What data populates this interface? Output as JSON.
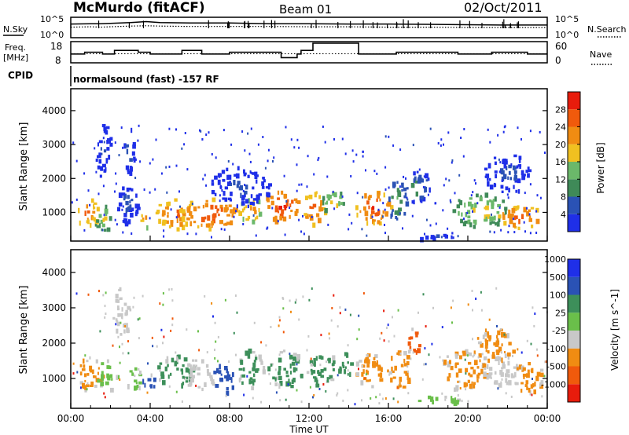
{
  "header": {
    "station": "McMurdo (fitACF)",
    "beam": "Beam 01",
    "date": "02/Oct/2011"
  },
  "noise_panel": {
    "left_label": "N.Sky",
    "right_label": "N.Search",
    "left_ticks": [
      "10^5",
      "10^0"
    ],
    "right_ticks": [
      "10^5",
      "10^0"
    ]
  },
  "freq_panel": {
    "left_label_line1": "Freq.",
    "left_label_line2": "[MHz]",
    "right_label": "Nave",
    "left_ticks": [
      "18",
      "8"
    ],
    "right_ticks": [
      "60",
      "0"
    ]
  },
  "cpid": {
    "label": "CPID",
    "text": "normalsound (fast) -157 RF"
  },
  "time_axis": {
    "title": "Time UT",
    "ticks": [
      "00:00",
      "04:00",
      "08:00",
      "12:00",
      "16:00",
      "20:00",
      "00:00"
    ]
  },
  "colors": {
    "power": [
      "#1f2fe8",
      "#2a52b5",
      "#3f8a58",
      "#6bb86a",
      "#f0c020",
      "#f08c12",
      "#f05a0c",
      "#e81c0c"
    ],
    "velocity": [
      "#e81c0c",
      "#f05a0c",
      "#f08c12",
      "#c8c8c8",
      "#6abf4a",
      "#3d8f5a",
      "#2a52b5",
      "#1f2fe8"
    ]
  },
  "chart_data": [
    {
      "type": "line",
      "panel": "noise",
      "x": [
        0,
        1,
        1.5,
        2,
        3,
        3.8,
        4.5,
        6,
        8,
        10,
        12,
        14,
        16,
        18,
        20,
        22,
        24
      ],
      "series": [
        {
          "name": "N.Sky",
          "values": [
            3.5,
            3.6,
            3.6,
            3.7,
            3.9,
            4.2,
            3.9,
            3.8,
            3.8,
            3.6,
            3.6,
            3.5,
            3.5,
            3.4,
            3.3,
            3.2,
            3.2
          ]
        },
        {
          "name": "N.Search",
          "values": [
            2.6,
            2.7,
            2.6,
            2.7,
            2.9,
            3.0,
            2.9,
            2.8,
            2.8,
            2.8,
            2.7,
            2.7,
            2.6,
            2.6,
            2.5,
            2.5,
            2.5
          ]
        }
      ],
      "ylim": [
        0,
        5
      ]
    },
    {
      "type": "line",
      "panel": "frequency",
      "x": [
        0,
        0.6,
        0.7,
        1.5,
        1.6,
        2.0,
        2.2,
        3.2,
        3.4,
        4.0,
        4.3,
        5.0,
        5.6,
        6.0,
        6.6,
        7.4,
        8.0,
        9.0,
        10.2,
        10.6,
        11.0,
        11.4,
        11.6,
        12.0,
        12.2,
        14.5,
        16.0,
        16.4,
        19.5,
        21.0,
        21.2,
        23.0,
        24.0
      ],
      "series": [
        {
          "name": "Freq",
          "values": [
            12,
            12,
            13,
            13,
            12,
            12,
            14,
            14,
            13,
            12,
            12,
            12,
            14,
            14,
            12,
            12,
            13,
            13,
            13,
            10,
            10,
            12,
            14,
            14,
            18,
            12,
            12,
            13,
            12,
            12,
            13,
            12,
            12
          ]
        },
        {
          "name": "Nave",
          "values": [
            25,
            25,
            25,
            25,
            25,
            25,
            25,
            25,
            25,
            25,
            25,
            25,
            25,
            25,
            25,
            25,
            25,
            25,
            25,
            25,
            25,
            25,
            25,
            25,
            25,
            25,
            25,
            25,
            25,
            25,
            25,
            25,
            25
          ]
        }
      ],
      "ylim": [
        8,
        18
      ]
    },
    {
      "type": "heatmap",
      "panel": "power",
      "xlabel": "Time UT",
      "ylabel": "Slant Range [km]",
      "xlim": [
        0,
        24
      ],
      "ylim": [
        200,
        4600
      ],
      "y_ticks": [
        "1000",
        "2000",
        "3000",
        "4000"
      ],
      "colorbar": {
        "label": "Power [dB]",
        "ticks": [
          "4",
          "8",
          "12",
          "16",
          "20",
          "24",
          "28"
        ],
        "range": [
          0,
          32
        ]
      },
      "blobs": [
        {
          "t": 0.8,
          "r": 1050,
          "dt": 0.6,
          "dr": 400,
          "v": 26
        },
        {
          "t": 1.6,
          "r": 900,
          "dt": 0.5,
          "dr": 400,
          "v": 18
        },
        {
          "t": 3.7,
          "r": 850,
          "dt": 0.3,
          "dr": 250,
          "v": 25
        },
        {
          "t": 2.8,
          "r": 1400,
          "dt": 0.6,
          "dr": 700,
          "v": 8
        },
        {
          "t": 5.2,
          "r": 1000,
          "dt": 1.0,
          "dr": 450,
          "v": 27
        },
        {
          "t": 7.0,
          "r": 1000,
          "dt": 1.6,
          "dr": 450,
          "v": 29
        },
        {
          "t": 9.0,
          "r": 1100,
          "dt": 0.6,
          "dr": 400,
          "v": 24
        },
        {
          "t": 10.6,
          "r": 1250,
          "dt": 0.9,
          "dr": 500,
          "v": 30
        },
        {
          "t": 12.2,
          "r": 1150,
          "dt": 0.6,
          "dr": 500,
          "v": 28
        },
        {
          "t": 13.2,
          "r": 1350,
          "dt": 0.6,
          "dr": 350,
          "v": 20
        },
        {
          "t": 15.2,
          "r": 1200,
          "dt": 0.9,
          "dr": 500,
          "v": 29
        },
        {
          "t": 16.4,
          "r": 1400,
          "dt": 0.5,
          "dr": 650,
          "v": 14
        },
        {
          "t": 17.4,
          "r": 1800,
          "dt": 0.7,
          "dr": 500,
          "v": 12
        },
        {
          "t": 20.6,
          "r": 1100,
          "dt": 1.4,
          "dr": 500,
          "v": 20
        },
        {
          "t": 22.6,
          "r": 900,
          "dt": 1.2,
          "dr": 350,
          "v": 28
        },
        {
          "t": 22.0,
          "r": 2200,
          "dt": 1.2,
          "dr": 600,
          "v": 8
        },
        {
          "t": 1.6,
          "r": 2800,
          "dt": 0.4,
          "dr": 900,
          "v": 8
        },
        {
          "t": 2.9,
          "r": 2900,
          "dt": 0.3,
          "dr": 700,
          "v": 10
        },
        {
          "t": 8.5,
          "r": 1800,
          "dt": 1.5,
          "dr": 600,
          "v": 8
        },
        {
          "t": 18.5,
          "r": 350,
          "dt": 1.2,
          "dr": 120,
          "v": 6
        }
      ]
    },
    {
      "type": "heatmap",
      "panel": "velocity",
      "xlabel": "Time UT",
      "ylabel": "Slant Range [km]",
      "xlim": [
        0,
        24
      ],
      "ylim": [
        200,
        4600
      ],
      "y_ticks": [
        "1000",
        "2000",
        "3000",
        "4000"
      ],
      "colorbar": {
        "label": "Velocity [m s^-1]",
        "ticks": [
          "-1000",
          "-500",
          "-100",
          "-25",
          "25",
          "100",
          "500",
          "1000"
        ]
      },
      "blobs": [
        {
          "t": 0.9,
          "r": 1150,
          "dt": 0.7,
          "dr": 500,
          "c": 2
        },
        {
          "t": 1.8,
          "r": 1100,
          "dt": 0.5,
          "dr": 450,
          "c": 4
        },
        {
          "t": 3.2,
          "r": 1000,
          "dt": 0.4,
          "dr": 400,
          "c": 4
        },
        {
          "t": 3.9,
          "r": 950,
          "dt": 0.3,
          "dr": 300,
          "c": 6
        },
        {
          "t": 5.2,
          "r": 1200,
          "dt": 1.0,
          "dr": 500,
          "c": 5
        },
        {
          "t": 6.4,
          "r": 1200,
          "dt": 0.6,
          "dr": 500,
          "c": 3
        },
        {
          "t": 7.6,
          "r": 1050,
          "dt": 0.6,
          "dr": 450,
          "c": 6
        },
        {
          "t": 9.0,
          "r": 1300,
          "dt": 0.7,
          "dr": 550,
          "c": 5
        },
        {
          "t": 10.8,
          "r": 1300,
          "dt": 0.9,
          "dr": 550,
          "c": 5
        },
        {
          "t": 12.6,
          "r": 1300,
          "dt": 0.8,
          "dr": 500,
          "c": 5
        },
        {
          "t": 13.8,
          "r": 1350,
          "dt": 0.4,
          "dr": 400,
          "c": 5
        },
        {
          "t": 15.0,
          "r": 1250,
          "dt": 0.8,
          "dr": 500,
          "c": 2
        },
        {
          "t": 16.5,
          "r": 1300,
          "dt": 0.6,
          "dr": 550,
          "c": 2
        },
        {
          "t": 17.2,
          "r": 2100,
          "dt": 0.4,
          "dr": 350,
          "c": 1
        },
        {
          "t": 19.8,
          "r": 1250,
          "dt": 1.2,
          "dr": 600,
          "c": 2
        },
        {
          "t": 21.6,
          "r": 1300,
          "dt": 0.9,
          "dr": 500,
          "c": 3
        },
        {
          "t": 23.0,
          "r": 1050,
          "dt": 0.9,
          "dr": 450,
          "c": 2
        },
        {
          "t": 21.4,
          "r": 2000,
          "dt": 1.0,
          "dr": 500,
          "c": 2
        },
        {
          "t": 18.5,
          "r": 400,
          "dt": 1.2,
          "dr": 150,
          "c": 4
        },
        {
          "t": 2.5,
          "r": 2900,
          "dt": 0.5,
          "dr": 700,
          "c": 3
        }
      ]
    }
  ]
}
